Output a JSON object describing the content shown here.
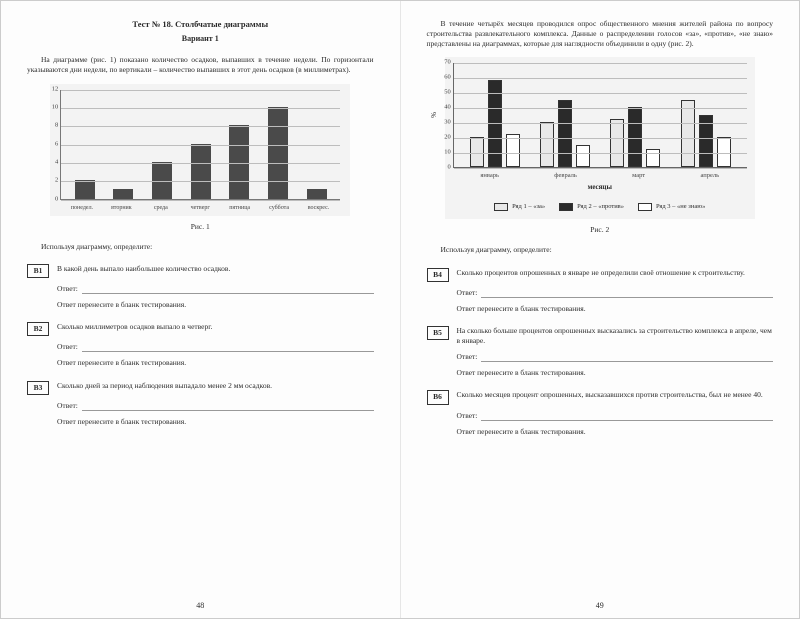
{
  "left": {
    "title": "Тест № 18. Столбчатые диаграммы",
    "variant": "Вариант 1",
    "intro": "На диаграмме (рис. 1) показано количество осадков, выпавших в течение недели. По горизонтали указываются дни недели, по вертикали – количество выпавших в этот день осадков (в миллиметрах).",
    "chart1": {
      "type": "bar",
      "bg": "#f3f3f3",
      "bar_color": "#4a4a4a",
      "grid_color": "#bdbdbd",
      "ylim": [
        0,
        12
      ],
      "yticks": [
        0,
        2,
        4,
        6,
        8,
        10,
        12
      ],
      "categories": [
        "понедел.",
        "вторник",
        "среда",
        "четверг",
        "пятница",
        "суббота",
        "воскрес."
      ],
      "values": [
        2,
        1,
        4,
        6,
        8,
        10,
        1
      ]
    },
    "fig_caption": "Рис. 1",
    "instr": "Используя диаграмму, определите:",
    "questions": [
      {
        "id": "В1",
        "text": "В какой день выпало наибольшее количество осадков."
      },
      {
        "id": "В2",
        "text": "Сколько миллиметров осадков выпало в четверг."
      },
      {
        "id": "В3",
        "text": "Сколько дней за период наблюдения выпадало менее 2 мм осадков."
      }
    ],
    "answer_label": "Ответ:",
    "transfer": "Ответ перенесите в бланк тестирования.",
    "pagenum": "48"
  },
  "right": {
    "intro": "В течение четырёх месяцев проводился опрос общественного мнения жителей района по вопросу строительства развлекательного комплекса. Данные о распределении голосов «за», «против», «не знаю» представлены на диаграммах, которые для наглядности объединили в одну (рис. 2).",
    "chart2": {
      "type": "grouped-bar",
      "bg": "#f3f3f3",
      "ylim": [
        0,
        70
      ],
      "yticks": [
        0,
        10,
        20,
        30,
        40,
        50,
        60,
        70
      ],
      "ylabel": "%",
      "xlabel": "месяцы",
      "categories": [
        "январь",
        "февраль",
        "март",
        "апрель"
      ],
      "series": [
        {
          "name": "Ряд 1 – «за»",
          "color": "#e8e8e8",
          "key": "za"
        },
        {
          "name": "Ряд 2 – «против»",
          "color": "#2a2a2a",
          "key": "pr"
        },
        {
          "name": "Ряд 3 – «не знаю»",
          "color": "#ffffff",
          "key": "nz"
        }
      ],
      "values": {
        "za": [
          20,
          30,
          32,
          45
        ],
        "pr": [
          58,
          45,
          40,
          35
        ],
        "nz": [
          22,
          15,
          12,
          20
        ]
      },
      "grid_color": "#bdbdbd"
    },
    "fig_caption": "Рис. 2",
    "instr": "Используя диаграмму, определите:",
    "questions": [
      {
        "id": "В4",
        "text": "Сколько процентов опрошенных в январе не определили своё отношение к строительству."
      },
      {
        "id": "В5",
        "text": "На сколько больше процентов опрошенных высказались за строительство комплекса в апреле, чем в январе."
      },
      {
        "id": "В6",
        "text": "Сколько месяцев процент опрошенных, высказавшихся против строительства, был не менее 40."
      }
    ],
    "answer_label": "Ответ:",
    "transfer": "Ответ перенесите в бланк тестирования.",
    "pagenum": "49"
  }
}
